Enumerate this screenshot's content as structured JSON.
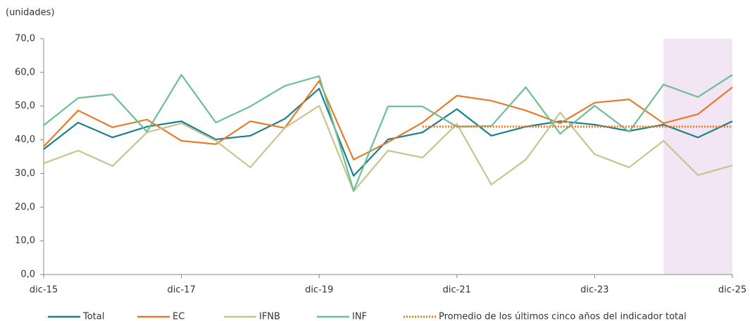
{
  "chart_data": {
    "type": "line",
    "y_axis_label": "(unidades)",
    "categories": [
      "dic-15",
      null,
      null,
      null,
      "dic-17",
      null,
      null,
      null,
      "dic-19",
      null,
      null,
      null,
      "dic-21",
      null,
      null,
      null,
      "dic-23",
      null,
      null,
      null,
      "dic-25"
    ],
    "ylim": [
      0,
      70
    ],
    "yticks": [
      {
        "value": 0,
        "label": "0,0"
      },
      {
        "value": 10,
        "label": "10,0"
      },
      {
        "value": 20,
        "label": "20,0"
      },
      {
        "value": 30,
        "label": "30,0"
      },
      {
        "value": 40,
        "label": "40,0"
      },
      {
        "value": 50,
        "label": "50,0"
      },
      {
        "value": 60,
        "label": "60,0"
      },
      {
        "value": 70,
        "label": "70,0"
      }
    ],
    "grid": false,
    "highlight": {
      "from": 18,
      "to": 20,
      "color": "#f2e5f4"
    },
    "legend": "bottom",
    "series": [
      {
        "name": "Total",
        "color": "#1a7f8e",
        "values": [
          37.2,
          45.1,
          40.7,
          43.9,
          45.5,
          40.1,
          41.2,
          46.2,
          55.2,
          29.3,
          40.1,
          42.2,
          49.1,
          41.2,
          43.9,
          45.5,
          44.5,
          42.6,
          44.5,
          40.7,
          45.5
        ]
      },
      {
        "name": "EC",
        "color": "#e87a2a",
        "values": [
          38.0,
          48.7,
          43.7,
          46.0,
          39.7,
          38.7,
          45.5,
          43.5,
          57.5,
          34.1,
          39.3,
          45.1,
          53.1,
          51.6,
          48.7,
          44.9,
          51.0,
          52.0,
          44.9,
          47.6,
          55.6
        ]
      },
      {
        "name": "IFNB",
        "color": "#c8c48e",
        "values": [
          33.0,
          36.8,
          32.2,
          42.2,
          44.9,
          39.7,
          31.8,
          43.5,
          50.1,
          24.7,
          36.8,
          34.7,
          44.7,
          26.7,
          34.1,
          48.1,
          35.7,
          31.8,
          39.7,
          29.5,
          32.4
        ]
      },
      {
        "name": "INF",
        "color": "#6cbf95",
        "values": [
          44.3,
          52.4,
          53.5,
          42.4,
          59.3,
          45.1,
          49.9,
          56.0,
          58.9,
          24.9,
          49.9,
          49.9,
          43.9,
          44.1,
          55.6,
          41.8,
          50.1,
          42.4,
          56.4,
          52.7,
          59.3
        ]
      },
      {
        "name": "Promedio de los últimos cinco años del indicador total",
        "color": "#e87a2a",
        "dotted": true,
        "values": [
          null,
          null,
          null,
          null,
          null,
          null,
          null,
          null,
          null,
          null,
          null,
          43.9,
          43.9,
          43.9,
          43.9,
          43.9,
          43.9,
          43.9,
          43.9,
          43.9,
          43.9
        ]
      }
    ]
  }
}
